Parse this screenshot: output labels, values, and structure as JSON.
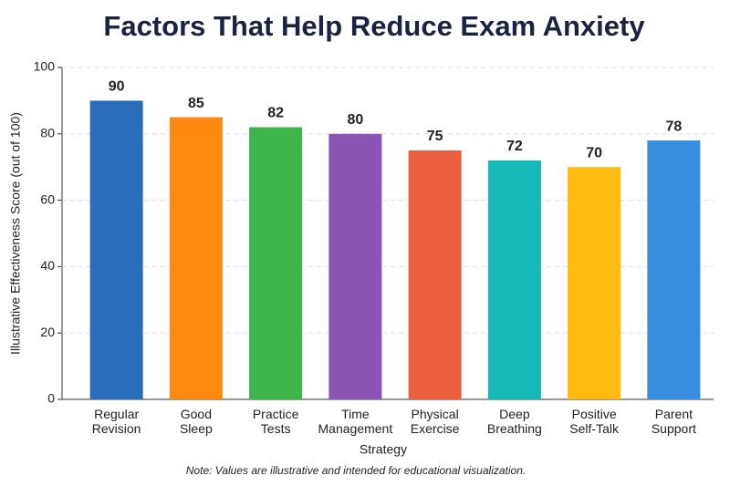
{
  "chart_data": {
    "type": "bar",
    "title": "Factors That Help Reduce Exam Anxiety",
    "xlabel": "Strategy",
    "ylabel": "Illustrative Effectiveness Score (out of 100)",
    "note": "Note: Values are illustrative and intended for educational visualization.",
    "categories": [
      "Regular Revision",
      "Good Sleep",
      "Practice Tests",
      "Time Management",
      "Physical Exercise",
      "Deep Breathing",
      "Positive Self-Talk",
      "Parent Support"
    ],
    "values": [
      90,
      85,
      82,
      80,
      75,
      72,
      70,
      78
    ],
    "colors": [
      "#2a6ebb",
      "#ff8a12",
      "#3db54a",
      "#8a55b5",
      "#eb5e3e",
      "#17b8b8",
      "#ffbb0f",
      "#3a8ee0"
    ],
    "ylim": [
      0,
      100
    ],
    "yticks": [
      0,
      20,
      40,
      60,
      80,
      100
    ],
    "grid": true
  }
}
